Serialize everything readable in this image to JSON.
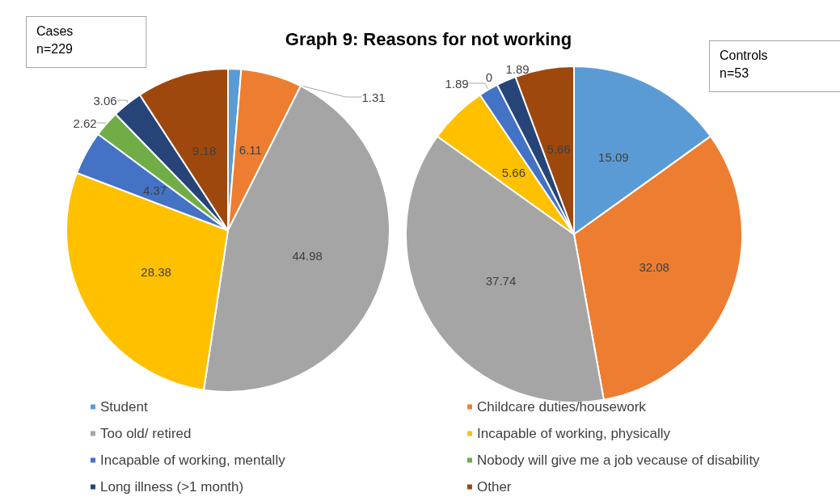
{
  "chart_data": {
    "type": "pie",
    "title": "Graph 9: Reasons for not working",
    "annotations": [
      "n=229",
      "n=53"
    ],
    "categories": [
      "Student",
      "Childcare duties/housework",
      "Too old/ retired",
      "Incapable of working, physically",
      "Incapable of working, mentally",
      "Nobody will give me a job vecause of disability",
      "Long illness (>1 month)",
      "Other"
    ],
    "colors": [
      "#5b9bd5",
      "#ed7d31",
      "#a5a5a5",
      "#ffc000",
      "#4472c4",
      "#70ad47",
      "#264478",
      "#9e480e"
    ],
    "series": [
      {
        "name": "Cases",
        "values": [
          1.31,
          6.11,
          44.98,
          28.38,
          4.37,
          2.62,
          3.06,
          9.18
        ]
      },
      {
        "name": "Controls",
        "values": [
          15.09,
          32.08,
          37.74,
          5.66,
          1.89,
          0,
          1.89,
          5.66
        ],
        "value_labels": [
          "15.09",
          "32.08",
          "37.74",
          "5.66",
          "1.89",
          "0",
          "1.89",
          "5.66"
        ]
      }
    ],
    "data_labels": true,
    "legend": "bottom"
  }
}
